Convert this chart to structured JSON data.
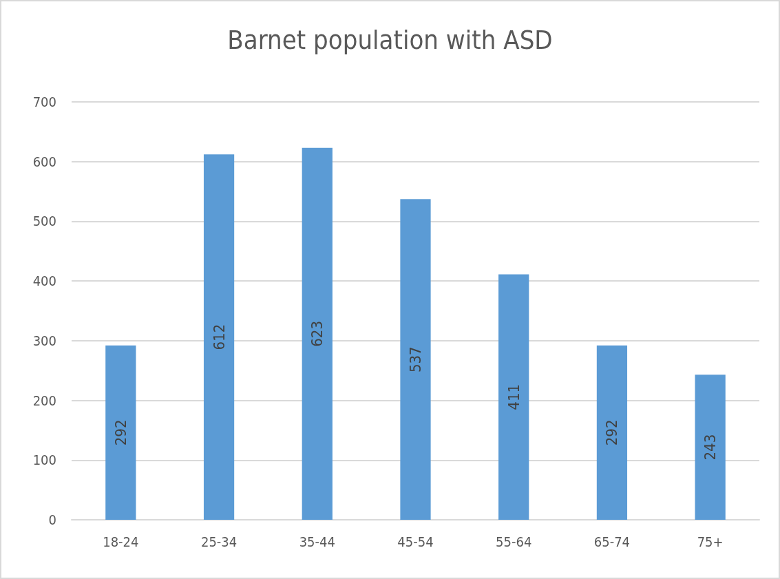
{
  "chart_data": {
    "type": "bar",
    "title": "Barnet population with ASD",
    "categories": [
      "18-24",
      "25-34",
      "35-44",
      "45-54",
      "55-64",
      "65-74",
      "75+"
    ],
    "values": [
      292,
      612,
      623,
      537,
      411,
      292,
      243
    ],
    "color": "#5b9bd5",
    "ylim": [
      0,
      700
    ],
    "yticks": [
      0,
      100,
      200,
      300,
      400,
      500,
      600,
      700
    ],
    "grid": "y",
    "data_labels": true
  }
}
